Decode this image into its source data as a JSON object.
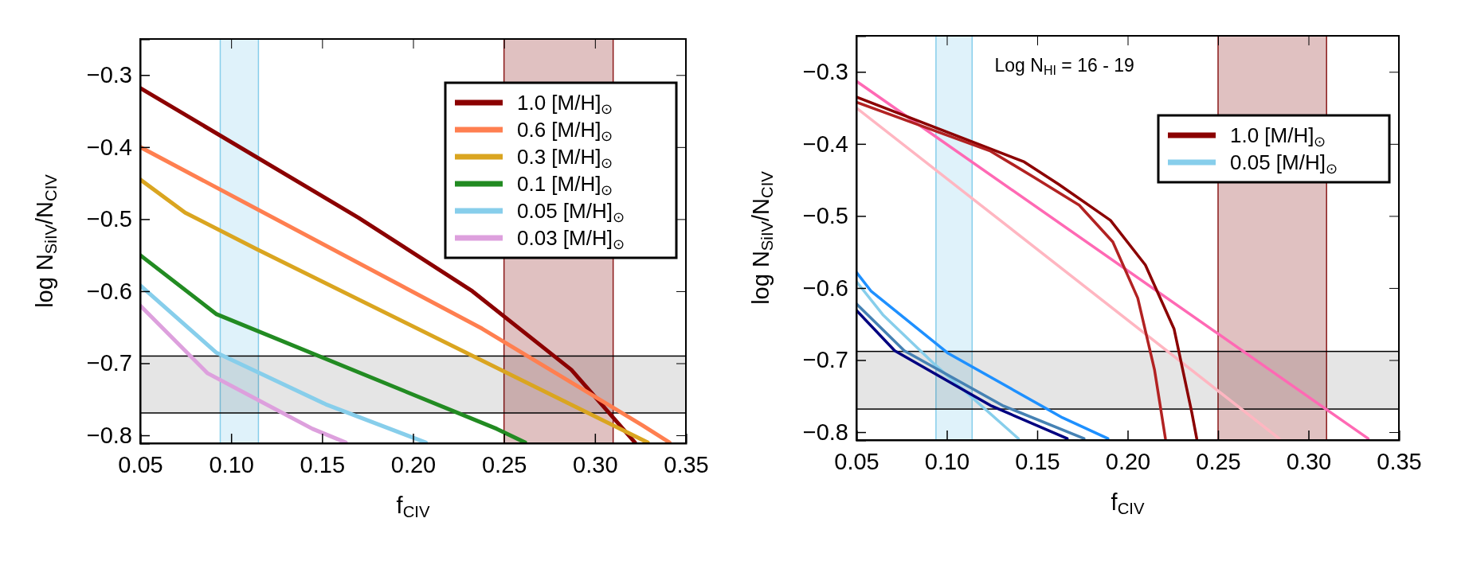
{
  "chart_data": [
    {
      "type": "line",
      "xlabel": "f$_{CIV}$",
      "ylabel": "log N$_{SiIV}$/N$_{CIV}$",
      "xlim": [
        0.05,
        0.35
      ],
      "ylim": [
        -0.811,
        -0.25
      ],
      "xticks": [
        {
          "value": 0.05,
          "label": "0.05"
        },
        {
          "value": 0.1,
          "label": "0.10"
        },
        {
          "value": 0.15,
          "label": "0.15"
        },
        {
          "value": 0.2,
          "label": "0.20"
        },
        {
          "value": 0.25,
          "label": "0.25"
        },
        {
          "value": 0.3,
          "label": "0.30"
        },
        {
          "value": 0.35,
          "label": "0.35"
        }
      ],
      "yticks": [
        {
          "value": -0.8,
          "label": "−0.8"
        },
        {
          "value": -0.7,
          "label": "−0.7"
        },
        {
          "value": -0.6,
          "label": "−0.6"
        },
        {
          "value": -0.5,
          "label": "−0.5"
        },
        {
          "value": -0.4,
          "label": "−0.4"
        },
        {
          "value": -0.3,
          "label": "−0.3"
        }
      ],
      "legend": "top right",
      "grid": false,
      "bands": [
        {
          "axis": "x",
          "from": 0.094,
          "to": 0.115,
          "color": "#87ceeb"
        },
        {
          "axis": "x",
          "from": 0.25,
          "to": 0.31,
          "color": "#8b1a1a"
        },
        {
          "axis": "y",
          "from": -0.769,
          "to": -0.69,
          "color": "#000000"
        }
      ],
      "series": [
        {
          "name": "1.0 [M/H]$_{⊙}$",
          "color": "#8b0000",
          "x": [
            0.05,
            0.17,
            0.2326,
            0.287,
            0.322
          ],
          "values": [
            -0.318,
            -0.498,
            -0.6,
            -0.709,
            -0.81
          ]
        },
        {
          "name": "0.6 [M/H]$_{⊙}$",
          "color": "#ff7f50",
          "x": [
            0.05,
            0.238,
            0.326,
            0.341
          ],
          "values": [
            -0.4,
            -0.652,
            -0.786,
            -0.81
          ]
        },
        {
          "name": "0.3 [M/H]$_{⊙}$",
          "color": "#daa520",
          "x": [
            0.05,
            0.0747,
            0.1144,
            0.329
          ],
          "values": [
            -0.445,
            -0.491,
            -0.542,
            -0.81
          ]
        },
        {
          "name": "0.1 [M/H]$_{⊙}$",
          "color": "#228b22",
          "x": [
            0.05,
            0.092,
            0.246,
            0.2616
          ],
          "values": [
            -0.55,
            -0.632,
            -0.791,
            -0.81
          ]
        },
        {
          "name": "0.05 [M/H]$_{⊙}$",
          "color": "#87ceeb",
          "x": [
            0.05,
            0.0917,
            0.152,
            0.207
          ],
          "values": [
            -0.592,
            -0.685,
            -0.757,
            -0.81
          ]
        },
        {
          "name": "0.03 [M/H]$_{⊙}$",
          "color": "#dda0dd",
          "x": [
            0.05,
            0.0871,
            0.1447,
            0.163
          ],
          "values": [
            -0.62,
            -0.714,
            -0.791,
            -0.81
          ]
        }
      ]
    },
    {
      "type": "line",
      "xlabel": "f$_{CIV}$",
      "ylabel": "log N$_{SiIV}$/N$_{CIV}$",
      "xlim": [
        0.05,
        0.35
      ],
      "ylim": [
        -0.811,
        -0.25
      ],
      "xticks": [
        {
          "value": 0.05,
          "label": "0.05"
        },
        {
          "value": 0.1,
          "label": "0.10"
        },
        {
          "value": 0.15,
          "label": "0.15"
        },
        {
          "value": 0.2,
          "label": "0.20"
        },
        {
          "value": 0.25,
          "label": "0.25"
        },
        {
          "value": 0.3,
          "label": "0.30"
        },
        {
          "value": 0.35,
          "label": "0.35"
        }
      ],
      "yticks": [
        {
          "value": -0.8,
          "label": "−0.8"
        },
        {
          "value": -0.7,
          "label": "−0.7"
        },
        {
          "value": -0.6,
          "label": "−0.6"
        },
        {
          "value": -0.5,
          "label": "−0.5"
        },
        {
          "value": -0.4,
          "label": "−0.4"
        },
        {
          "value": -0.3,
          "label": "−0.3"
        }
      ],
      "legend": "top right",
      "grid": false,
      "annotations": [
        "Log N$_{HI}$ = 16 - 19"
      ],
      "bands": [
        {
          "axis": "x",
          "from": 0.094,
          "to": 0.114,
          "color": "#87ceeb"
        },
        {
          "axis": "x",
          "from": 0.25,
          "to": 0.31,
          "color": "#8b1a1a"
        },
        {
          "axis": "y",
          "from": -0.768,
          "to": -0.688,
          "color": "#000000"
        }
      ],
      "series": [
        {
          "color": "#ff69b4",
          "x": [
            0.05,
            0.333
          ],
          "values": [
            -0.313,
            -0.809
          ]
        },
        {
          "color": "#ffb6c1",
          "x": [
            0.05,
            0.2838
          ],
          "values": [
            -0.35,
            -0.809
          ]
        },
        {
          "name": "1.0 [M/H]$_{⊙}$",
          "color": "#8b0000",
          "x": [
            0.05,
            0.1428,
            0.1618,
            0.1905,
            0.2098,
            0.2257,
            0.2355,
            0.2382
          ],
          "values": [
            -0.335,
            -0.425,
            -0.456,
            -0.506,
            -0.568,
            -0.657,
            -0.773,
            -0.809
          ]
        },
        {
          "color": "#b22222",
          "x": [
            0.05,
            0.1242,
            0.148,
            0.1732,
            0.1918,
            0.2056,
            0.2149,
            0.2209
          ],
          "values": [
            -0.342,
            -0.41,
            -0.446,
            -0.485,
            -0.536,
            -0.614,
            -0.714,
            -0.809
          ]
        },
        {
          "color": "#1e90ff",
          "x": [
            0.05,
            0.058,
            0.1004,
            0.164,
            0.1891
          ],
          "values": [
            -0.578,
            -0.604,
            -0.69,
            -0.78,
            -0.809
          ]
        },
        {
          "name": "0.05 [M/H]$_{⊙}$",
          "color": "#87ceeb",
          "x": [
            0.05,
            0.0646,
            0.0924,
            0.1396
          ],
          "values": [
            -0.591,
            -0.637,
            -0.704,
            -0.809
          ]
        },
        {
          "color": "#4682b4",
          "x": [
            0.05,
            0.0765,
            0.1308,
            0.1759
          ],
          "values": [
            -0.622,
            -0.687,
            -0.763,
            -0.809
          ]
        },
        {
          "color": "#000080",
          "x": [
            0.05,
            0.0712,
            0.1242,
            0.1666
          ],
          "values": [
            -0.631,
            -0.687,
            -0.763,
            -0.809
          ]
        }
      ]
    }
  ]
}
